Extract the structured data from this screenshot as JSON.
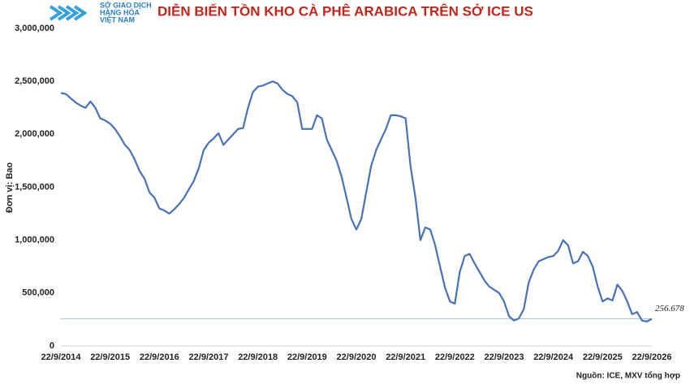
{
  "logo": {
    "lines": [
      "SỞ GIAO DỊCH",
      "HÀNG HÓA",
      "VIỆT NAM"
    ]
  },
  "chart_data": {
    "type": "line",
    "title": "DIỄN BIẾN TỒN KHO CÀ PHÊ ARABICA TRÊN SỞ ICE US",
    "y_label": "Đơn vị: Bao",
    "source": "Nguồn: ICE, MXV tổng hợp",
    "color": "#4a72b0",
    "categories": [
      "22/9/2014",
      null,
      null,
      null,
      null,
      null,
      null,
      null,
      null,
      null,
      "22/9/2015",
      null,
      null,
      null,
      null,
      null,
      null,
      null,
      null,
      null,
      "22/9/2016",
      null,
      null,
      null,
      null,
      null,
      null,
      null,
      null,
      null,
      "22/9/2017",
      null,
      null,
      null,
      null,
      null,
      null,
      null,
      null,
      null,
      "22/9/2018",
      null,
      null,
      null,
      null,
      null,
      null,
      null,
      null,
      null,
      "22/9/2019",
      null,
      null,
      null,
      null,
      null,
      null,
      null,
      null,
      null,
      "22/9/2020",
      null,
      null,
      null,
      null,
      null,
      null,
      null,
      null,
      null,
      "22/9/2021",
      null,
      null,
      null,
      null,
      null,
      null,
      null,
      null,
      null,
      "22/9/2022",
      null,
      null,
      null,
      null,
      null,
      null,
      null,
      null,
      null,
      "22/9/2023",
      null,
      null,
      null,
      null,
      null,
      null,
      null,
      null,
      null,
      "22/9/2024",
      null,
      null,
      null,
      null,
      null,
      null,
      null,
      null,
      null,
      "22/9/2025",
      null,
      null,
      null,
      null,
      null,
      null,
      null,
      null,
      null,
      "22/9/2026"
    ],
    "values": [
      2390000,
      2380000,
      2340000,
      2300000,
      2270000,
      2250000,
      2310000,
      2250000,
      2150000,
      2130000,
      2100000,
      2050000,
      1980000,
      1900000,
      1850000,
      1760000,
      1650000,
      1580000,
      1450000,
      1400000,
      1300000,
      1280000,
      1250000,
      1290000,
      1340000,
      1400000,
      1480000,
      1560000,
      1680000,
      1850000,
      1920000,
      1960000,
      2010000,
      1900000,
      1950000,
      2000000,
      2050000,
      2060000,
      2250000,
      2400000,
      2450000,
      2460000,
      2480000,
      2500000,
      2480000,
      2420000,
      2380000,
      2360000,
      2300000,
      2050000,
      2050000,
      2050000,
      2180000,
      2150000,
      1950000,
      1850000,
      1750000,
      1600000,
      1400000,
      1200000,
      1100000,
      1200000,
      1450000,
      1700000,
      1850000,
      1950000,
      2050000,
      2180000,
      2180000,
      2170000,
      2150000,
      1700000,
      1400000,
      1000000,
      1120000,
      1100000,
      950000,
      750000,
      550000,
      420000,
      400000,
      700000,
      850000,
      870000,
      780000,
      700000,
      620000,
      560000,
      530000,
      500000,
      420000,
      280000,
      240000,
      260000,
      350000,
      600000,
      720000,
      800000,
      820000,
      840000,
      850000,
      900000,
      1000000,
      950000,
      780000,
      800000,
      890000,
      850000,
      750000,
      560000,
      420000,
      450000,
      430000,
      580000,
      520000,
      420000,
      300000,
      320000,
      240000,
      230000,
      256678
    ],
    "value_labels": {
      "120": "256.678"
    },
    "ylim": [
      0,
      3000000
    ],
    "yticks": [
      0,
      {
        "value": 500000,
        "label": "500,000"
      },
      {
        "value": 1000000,
        "label": "1,000,000"
      },
      {
        "value": 1500000,
        "label": "1,500,000"
      },
      {
        "value": 2000000,
        "label": "2,000,000"
      },
      {
        "value": 2500000,
        "label": "2,500,000"
      },
      {
        "value": 3000000,
        "label": "3,000,000"
      }
    ],
    "grid": false
  }
}
